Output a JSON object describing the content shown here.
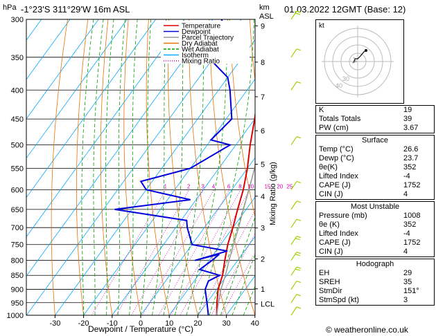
{
  "header": {
    "location": "-1°23'S  311°29'W  16m  ASL",
    "datetime": "01.03.2022  12GMT  (Base: 12)",
    "hpa_unit": "hPa",
    "km_unit": "km",
    "asl_unit": "ASL"
  },
  "chart_data": {
    "type": "line",
    "title": "",
    "xlabel": "Dewpoint / Temperature (°C)",
    "ylabel_right": "Mixing Ratio (g/kg)",
    "xlim": [
      -35,
      40
    ],
    "ylim_hpa": [
      1000,
      300
    ],
    "x_ticks": [
      -30,
      -20,
      -10,
      0,
      10,
      20,
      30,
      40
    ],
    "pressure_ticks": [
      300,
      350,
      400,
      450,
      500,
      550,
      600,
      650,
      700,
      750,
      800,
      850,
      900,
      950,
      1000
    ],
    "km_ticks": [
      {
        "label": "9",
        "p": 308
      },
      {
        "label": "8",
        "p": 357
      },
      {
        "label": "7",
        "p": 411
      },
      {
        "label": "6",
        "p": 472
      },
      {
        "label": "5",
        "p": 541
      },
      {
        "label": "4",
        "p": 616
      },
      {
        "label": "3",
        "p": 701
      },
      {
        "label": "2",
        "p": 795
      },
      {
        "label": "1",
        "p": 898
      },
      {
        "label": "LCL",
        "p": 955
      }
    ],
    "mixing_ratio_labels": [
      "1",
      "2",
      "3",
      "4",
      "6",
      "8",
      "10",
      "15",
      "20",
      "25"
    ],
    "legend": [
      "Temperature",
      "Dewpoint",
      "Parcel Trajectory",
      "Dry Adiabat",
      "Wet Adiabat",
      "Isotherm",
      "Mixing Ratio"
    ],
    "legend_placement": "top-left",
    "colors": {
      "temperature": "#dd0000",
      "dewpoint": "#0000dd",
      "parcel": "#999999",
      "dry_adiabat": "#e87000",
      "wet_adiabat": "#00a000",
      "isotherm": "#00aaff",
      "mixing_ratio": "#d000b0",
      "wind": "#a0d000"
    },
    "series": [
      {
        "name": "Temperature",
        "points": [
          [
            1000,
            26.6
          ],
          [
            950,
            23.5
          ],
          [
            900,
            20.5
          ],
          [
            850,
            18.5
          ],
          [
            800,
            15.5
          ],
          [
            750,
            12.5
          ],
          [
            700,
            10
          ],
          [
            650,
            7
          ],
          [
            600,
            4
          ],
          [
            550,
            0
          ],
          [
            500,
            -5
          ],
          [
            450,
            -10
          ],
          [
            400,
            -16
          ],
          [
            350,
            -23
          ],
          [
            300,
            -31
          ]
        ]
      },
      {
        "name": "Dewpoint",
        "points": [
          [
            1000,
            23.7
          ],
          [
            950,
            20
          ],
          [
            900,
            16
          ],
          [
            870,
            15
          ],
          [
            850,
            17.5
          ],
          [
            830,
            9
          ],
          [
            800,
            11
          ],
          [
            780,
            12
          ],
          [
            800,
            5
          ],
          [
            770,
            14
          ],
          [
            750,
            0
          ],
          [
            700,
            -6
          ],
          [
            680,
            -8
          ],
          [
            650,
            -36
          ],
          [
            625,
            -12
          ],
          [
            600,
            -30
          ],
          [
            580,
            -34
          ],
          [
            550,
            -20
          ],
          [
            500,
            -12
          ],
          [
            490,
            -20
          ],
          [
            450,
            -18
          ],
          [
            400,
            -26
          ],
          [
            380,
            -30
          ],
          [
            350,
            -42
          ],
          [
            320,
            -40
          ],
          [
            300,
            -47
          ]
        ]
      },
      {
        "name": "Parcel Trajectory",
        "points": [
          [
            1000,
            26.6
          ],
          [
            950,
            24
          ],
          [
            900,
            21.5
          ],
          [
            850,
            19.5
          ],
          [
            800,
            17
          ],
          [
            750,
            14.5
          ],
          [
            700,
            12
          ],
          [
            650,
            9
          ],
          [
            600,
            6
          ],
          [
            550,
            2.5
          ],
          [
            500,
            -2
          ],
          [
            450,
            -7
          ],
          [
            400,
            -13
          ],
          [
            350,
            -20
          ],
          [
            300,
            -28.5
          ]
        ]
      }
    ],
    "winds": [
      {
        "p": 1000,
        "spd": 5
      },
      {
        "p": 950,
        "spd": 5
      },
      {
        "p": 900,
        "spd": 5
      },
      {
        "p": 850,
        "spd": 10
      },
      {
        "p": 800,
        "spd": 10
      },
      {
        "p": 750,
        "spd": 10
      },
      {
        "p": 700,
        "spd": 5
      },
      {
        "p": 650,
        "spd": 5
      },
      {
        "p": 600,
        "spd": 5
      },
      {
        "p": 500,
        "spd": 5
      },
      {
        "p": 400,
        "spd": 5
      },
      {
        "p": 350,
        "spd": 5
      },
      {
        "p": 300,
        "spd": 10
      }
    ]
  },
  "hodograph": {
    "label": "kt",
    "ring_labels": [
      "40",
      "30"
    ]
  },
  "indices": {
    "rows": [
      {
        "label": "K",
        "value": "19"
      },
      {
        "label": "Totals Totals",
        "value": "39"
      },
      {
        "label": "PW (cm)",
        "value": "3.67"
      }
    ]
  },
  "surface": {
    "title": "Surface",
    "rows": [
      {
        "label": "Temp (°C)",
        "value": "26.6"
      },
      {
        "label": "Dewp (°C)",
        "value": "23.7"
      },
      {
        "label": "θe(K)",
        "value": "352"
      },
      {
        "label": "Lifted Index",
        "value": "-4"
      },
      {
        "label": "CAPE (J)",
        "value": "1752"
      },
      {
        "label": "CIN (J)",
        "value": "4"
      }
    ]
  },
  "most_unstable": {
    "title": "Most Unstable",
    "rows": [
      {
        "label": "Pressure (mb)",
        "value": "1008"
      },
      {
        "label": "θe (K)",
        "value": "352"
      },
      {
        "label": "Lifted Index",
        "value": "-4"
      },
      {
        "label": "CAPE (J)",
        "value": "1752"
      },
      {
        "label": "CIN (J)",
        "value": "4"
      }
    ]
  },
  "hodograph_table": {
    "title": "Hodograph",
    "rows": [
      {
        "label": "EH",
        "value": "29"
      },
      {
        "label": "SREH",
        "value": "35"
      },
      {
        "label": "StmDir",
        "value": "151°"
      },
      {
        "label": "StmSpd (kt)",
        "value": "3"
      }
    ]
  },
  "footer": {
    "copyright": "© weatheronline.co.uk"
  }
}
